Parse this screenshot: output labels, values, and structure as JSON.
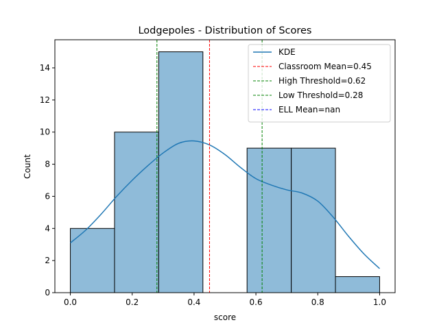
{
  "chart_data": {
    "type": "bar",
    "title": "Lodgepoles - Distribution of Scores",
    "xlabel": "score",
    "ylabel": "Count",
    "xlim": [
      -0.05,
      1.05
    ],
    "ylim": [
      0,
      15.75
    ],
    "xticks": [
      0.0,
      0.2,
      0.4,
      0.6,
      0.8,
      1.0
    ],
    "xtick_labels": [
      "0.0",
      "0.2",
      "0.4",
      "0.6",
      "0.8",
      "1.0"
    ],
    "yticks": [
      0,
      2,
      4,
      6,
      8,
      10,
      12,
      14
    ],
    "ytick_labels": [
      "0",
      "2",
      "4",
      "6",
      "8",
      "10",
      "12",
      "14"
    ],
    "grid": false,
    "bin_edges": [
      0.0,
      0.1429,
      0.2857,
      0.4286,
      0.5714,
      0.7143,
      0.8571,
      1.0
    ],
    "counts": [
      4,
      10,
      15,
      0,
      9,
      9,
      1
    ],
    "bar_color": "#8fbbd9",
    "bar_edge_color": "#000000",
    "kde": {
      "name": "KDE",
      "color": "#1f77b4",
      "x": [
        0.0,
        0.05,
        0.1,
        0.15,
        0.2,
        0.25,
        0.3,
        0.35,
        0.4,
        0.45,
        0.5,
        0.55,
        0.6,
        0.65,
        0.7,
        0.75,
        0.8,
        0.85,
        0.9,
        0.95,
        1.0
      ],
      "y": [
        3.1,
        3.9,
        4.9,
        6.0,
        7.0,
        7.9,
        8.7,
        9.3,
        9.45,
        9.2,
        8.6,
        7.8,
        7.1,
        6.7,
        6.4,
        6.2,
        5.7,
        4.7,
        3.5,
        2.4,
        1.5
      ]
    },
    "vlines": [
      {
        "label": "Classroom Mean=0.45",
        "x": 0.45,
        "color": "#ff0000"
      },
      {
        "label": "High Threshold=0.62",
        "x": 0.62,
        "color": "#008000"
      },
      {
        "label": "Low Threshold=0.28",
        "x": 0.28,
        "color": "#008000"
      },
      {
        "label": "ELL Mean=nan",
        "x": null,
        "color": "#0000ff"
      }
    ],
    "legend_position": "top-right"
  }
}
